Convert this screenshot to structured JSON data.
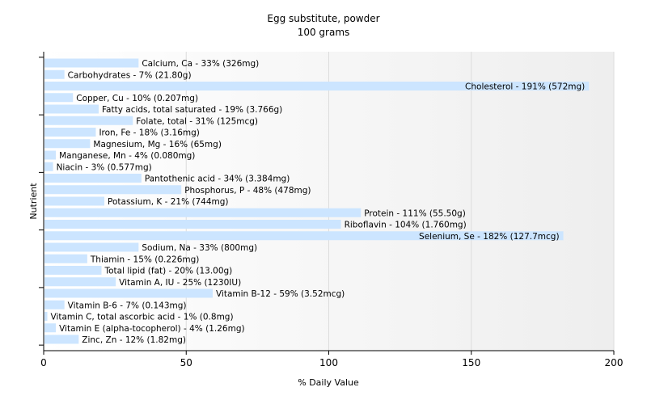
{
  "chart_data": {
    "type": "bar",
    "orientation": "horizontal",
    "title": "Egg substitute, powder",
    "subtitle": "100 grams",
    "xlabel": "% Daily Value",
    "ylabel": "Nutrient",
    "xlim": [
      0,
      200
    ],
    "xticks": [
      0,
      50,
      100,
      150,
      200
    ],
    "grid": true,
    "bar_color": "#cce5ff",
    "categories": [
      "Calcium, Ca",
      "Carbohydrates",
      "Cholesterol",
      "Copper, Cu",
      "Fatty acids, total saturated",
      "Folate, total",
      "Iron, Fe",
      "Magnesium, Mg",
      "Manganese, Mn",
      "Niacin",
      "Pantothenic acid",
      "Phosphorus, P",
      "Potassium, K",
      "Protein",
      "Riboflavin",
      "Selenium, Se",
      "Sodium, Na",
      "Thiamin",
      "Total lipid (fat)",
      "Vitamin A, IU",
      "Vitamin B-12",
      "Vitamin B-6",
      "Vitamin C, total ascorbic acid",
      "Vitamin E (alpha-tocopherol)",
      "Zinc, Zn"
    ],
    "values": [
      33,
      7,
      191,
      10,
      19,
      31,
      18,
      16,
      4,
      3,
      34,
      48,
      21,
      111,
      104,
      182,
      33,
      15,
      20,
      25,
      59,
      7,
      1,
      4,
      12
    ],
    "labels": [
      "Calcium, Ca - 33% (326mg)",
      "Carbohydrates - 7% (21.80g)",
      "Cholesterol - 191% (572mg)",
      "Copper, Cu - 10% (0.207mg)",
      "Fatty acids, total saturated - 19% (3.766g)",
      "Folate, total - 31% (125mcg)",
      "Iron, Fe - 18% (3.16mg)",
      "Magnesium, Mg - 16% (65mg)",
      "Manganese, Mn - 4% (0.080mg)",
      "Niacin - 3% (0.577mg)",
      "Pantothenic acid - 34% (3.384mg)",
      "Phosphorus, P - 48% (478mg)",
      "Potassium, K - 21% (744mg)",
      "Protein - 111% (55.50g)",
      "Riboflavin - 104% (1.760mg)",
      "Selenium, Se - 182% (127.7mcg)",
      "Sodium, Na - 33% (800mg)",
      "Thiamin - 15% (0.226mg)",
      "Total lipid (fat) - 20% (13.00g)",
      "Vitamin A, IU - 25% (1230IU)",
      "Vitamin B-12 - 59% (3.52mcg)",
      "Vitamin B-6 - 7% (0.143mg)",
      "Vitamin C, total ascorbic acid - 1% (0.8mg)",
      "Vitamin E (alpha-tocopherol) - 4% (1.26mg)",
      "Zinc, Zn - 12% (1.82mg)"
    ]
  }
}
